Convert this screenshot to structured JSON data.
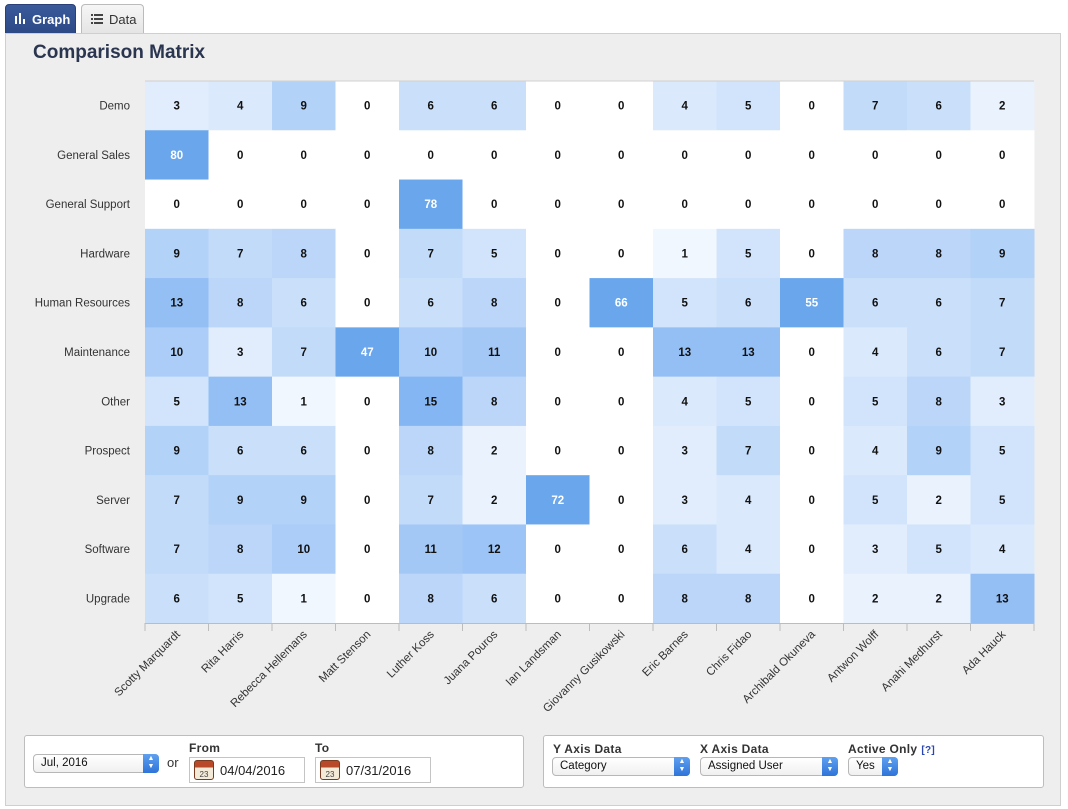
{
  "tabs": [
    {
      "label": "Graph",
      "icon": "bar-chart-icon",
      "active": true
    },
    {
      "label": "Data",
      "icon": "list-icon",
      "active": false
    }
  ],
  "title": "Comparison Matrix",
  "chart_data": {
    "type": "heatmap",
    "title": "Comparison Matrix",
    "rows": [
      "Demo",
      "General Sales",
      "General Support",
      "Hardware",
      "Human Resources",
      "Maintenance",
      "Other",
      "Prospect",
      "Server",
      "Software",
      "Upgrade"
    ],
    "columns": [
      "Scotty Marquardt",
      "Rita Harris",
      "Rebecca Hellemans",
      "Matt Stenson",
      "Luther Koss",
      "Juana Pouros",
      "Ian Landsman",
      "Giovanny Gusikowski",
      "Eric Barnes",
      "Chris Fidao",
      "Archibald Okuneva",
      "Antwon Wolff",
      "Anahi Medhurst",
      "Ada Hauck"
    ],
    "values": [
      [
        3,
        4,
        9,
        0,
        6,
        6,
        0,
        0,
        4,
        5,
        0,
        7,
        6,
        2
      ],
      [
        80,
        0,
        0,
        0,
        0,
        0,
        0,
        0,
        0,
        0,
        0,
        0,
        0,
        0
      ],
      [
        0,
        0,
        0,
        0,
        78,
        0,
        0,
        0,
        0,
        0,
        0,
        0,
        0,
        0
      ],
      [
        9,
        7,
        8,
        0,
        7,
        5,
        0,
        0,
        1,
        5,
        0,
        8,
        8,
        9
      ],
      [
        13,
        8,
        6,
        0,
        6,
        8,
        0,
        66,
        5,
        6,
        55,
        6,
        6,
        7
      ],
      [
        10,
        3,
        7,
        47,
        10,
        11,
        0,
        0,
        13,
        13,
        0,
        4,
        6,
        7
      ],
      [
        5,
        13,
        1,
        0,
        15,
        8,
        0,
        0,
        4,
        5,
        0,
        5,
        8,
        3
      ],
      [
        9,
        6,
        6,
        0,
        8,
        2,
        0,
        0,
        3,
        7,
        0,
        4,
        9,
        5
      ],
      [
        7,
        9,
        9,
        0,
        7,
        2,
        72,
        0,
        3,
        4,
        0,
        5,
        2,
        5
      ],
      [
        7,
        8,
        10,
        0,
        11,
        12,
        0,
        0,
        6,
        4,
        0,
        3,
        5,
        4
      ],
      [
        6,
        5,
        1,
        0,
        8,
        6,
        0,
        0,
        8,
        8,
        0,
        2,
        2,
        13
      ]
    ],
    "colors": {
      "low": "#ffffff",
      "high": "#5e9ff0",
      "strong": "#6aa6ec"
    }
  },
  "controls": {
    "period_value": "Jul, 2016",
    "or_label": "or",
    "from_label": "From",
    "from_value": "04/04/2016",
    "to_label": "To",
    "to_value": "07/31/2016",
    "calendar_day": "23",
    "y_axis_label": "Y Axis Data",
    "y_axis_value": "Category",
    "x_axis_label": "X Axis Data",
    "x_axis_value": "Assigned User",
    "active_label": "Active Only",
    "active_help": "[?]",
    "active_value": "Yes"
  }
}
